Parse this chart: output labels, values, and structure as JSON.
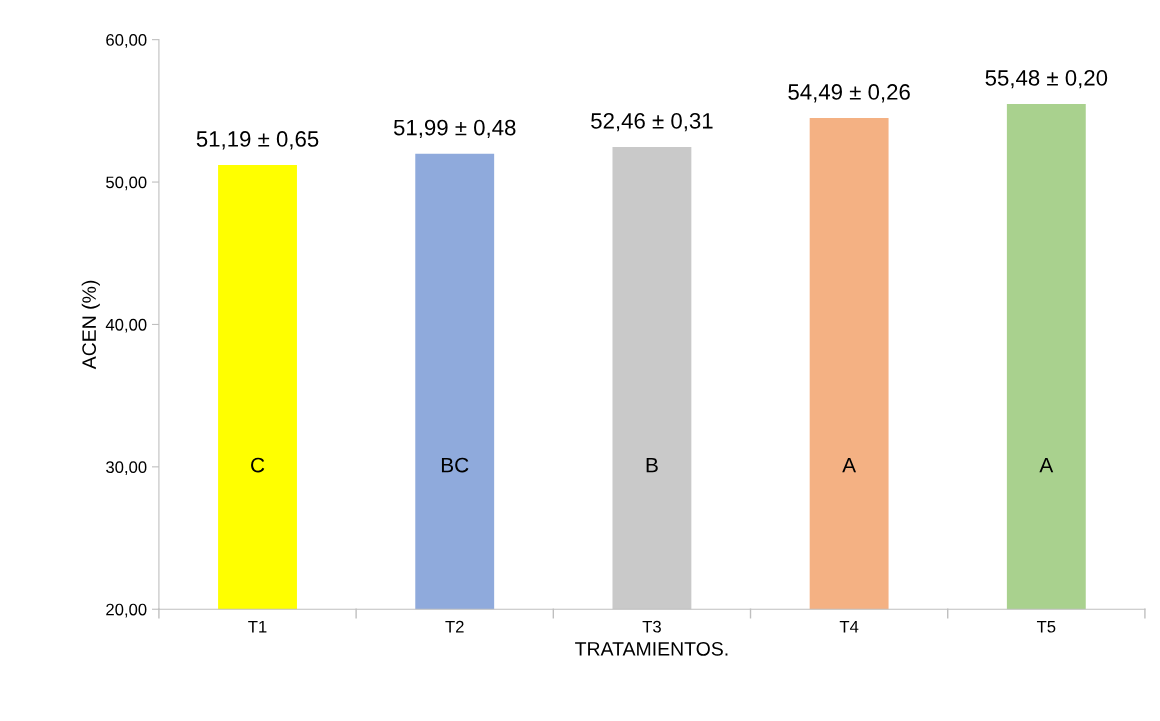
{
  "chart_data": {
    "type": "bar",
    "xlabel": "TRATAMIENTOS.",
    "ylabel": "ACEN (%)",
    "categories": [
      "T1",
      "T2",
      "T3",
      "T4",
      "T5"
    ],
    "values": [
      51.19,
      51.99,
      52.46,
      54.49,
      55.48
    ],
    "colors": [
      "#ffff00",
      "#8faadc",
      "#c9c9c9",
      "#f4b183",
      "#a9d18e"
    ],
    "value_labels": [
      "51,19 ± 0,65",
      "51,99 ± 0,48",
      "52,46 ± 0,31",
      "54,49 ± 0,26",
      "55,48 ± 0,20"
    ],
    "ylim": [
      20,
      60
    ],
    "yticks": [
      {
        "value": 20,
        "label": "20,00"
      },
      {
        "value": 30,
        "label": "30,00"
      },
      {
        "value": 40,
        "label": "40,00"
      },
      {
        "value": 50,
        "label": "50,00"
      },
      {
        "value": 60,
        "label": "60,00"
      }
    ],
    "annotations": [
      "C",
      "BC",
      "B",
      "A",
      "A"
    ]
  }
}
